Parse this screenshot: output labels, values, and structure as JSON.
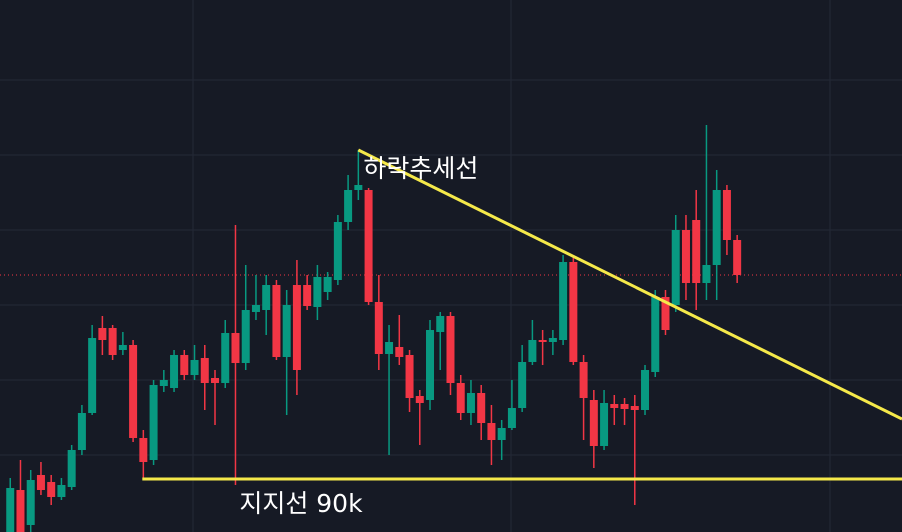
{
  "chart_data": {
    "type": "candlestick",
    "ohlc": [
      [
        84.7,
        90.1,
        84.7,
        89.1
      ],
      [
        88.9,
        91.9,
        84.7,
        84.7
      ],
      [
        85.4,
        90.9,
        84.7,
        89.9
      ],
      [
        90.4,
        91.7,
        88.4,
        88.9
      ],
      [
        89.7,
        90.4,
        87.4,
        88.2
      ],
      [
        88.2,
        90.1,
        87.9,
        89.4
      ],
      [
        89.2,
        93.4,
        88.9,
        92.9
      ],
      [
        92.9,
        97.4,
        92.4,
        96.6
      ],
      [
        96.6,
        105.4,
        96.4,
        104.1
      ],
      [
        105.1,
        106.3,
        102.4,
        103.9
      ],
      [
        105.1,
        105.4,
        101.9,
        102.4
      ],
      [
        102.9,
        104.7,
        102.4,
        103.4
      ],
      [
        103.4,
        103.9,
        93.7,
        94.1
      ],
      [
        94.1,
        94.9,
        90.1,
        91.7
      ],
      [
        91.9,
        99.9,
        91.4,
        99.4
      ],
      [
        99.3,
        100.9,
        98.7,
        99.9
      ],
      [
        99.1,
        102.9,
        98.7,
        102.4
      ],
      [
        102.4,
        102.9,
        99.9,
        100.4
      ],
      [
        100.4,
        103.4,
        99.9,
        101.9
      ],
      [
        102.1,
        103.4,
        96.9,
        99.6
      ],
      [
        100.1,
        100.9,
        95.4,
        99.6
      ],
      [
        99.6,
        105.9,
        99.1,
        104.6
      ],
      [
        104.6,
        115.4,
        89.4,
        101.6
      ],
      [
        101.6,
        111.4,
        100.9,
        106.9
      ],
      [
        106.7,
        110.4,
        105.9,
        107.4
      ],
      [
        106.9,
        110.4,
        104.4,
        109.4
      ],
      [
        109.4,
        109.9,
        101.9,
        102.2
      ],
      [
        102.2,
        108.9,
        96.4,
        107.4
      ],
      [
        109.4,
        111.9,
        98.4,
        100.9
      ],
      [
        109.4,
        110.4,
        106.9,
        107.3
      ],
      [
        107.2,
        111.4,
        105.9,
        110.2
      ],
      [
        108.7,
        110.7,
        107.9,
        110.2
      ],
      [
        109.9,
        116.4,
        109.4,
        115.7
      ],
      [
        115.7,
        120.4,
        114.9,
        118.9
      ],
      [
        118.9,
        122.9,
        117.9,
        119.4
      ],
      [
        118.9,
        119.1,
        107.4,
        107.7
      ],
      [
        107.7,
        110.4,
        100.9,
        102.5
      ],
      [
        102.5,
        105.4,
        92.4,
        103.7
      ],
      [
        103.2,
        106.4,
        101.4,
        102.2
      ],
      [
        102.4,
        102.9,
        96.7,
        98.1
      ],
      [
        98.3,
        98.9,
        93.4,
        97.6
      ],
      [
        97.9,
        105.9,
        96.9,
        104.9
      ],
      [
        104.7,
        106.7,
        100.9,
        106.3
      ],
      [
        106.3,
        106.7,
        98.4,
        99.6
      ],
      [
        99.6,
        100.4,
        95.9,
        96.6
      ],
      [
        96.6,
        99.9,
        95.4,
        98.6
      ],
      [
        98.6,
        99.4,
        93.9,
        95.6
      ],
      [
        95.6,
        97.4,
        91.4,
        93.9
      ],
      [
        93.9,
        95.9,
        91.9,
        95.1
      ],
      [
        95.1,
        99.9,
        94.9,
        97.1
      ],
      [
        97.1,
        103.4,
        96.7,
        101.7
      ],
      [
        101.7,
        105.9,
        101.4,
        103.9
      ],
      [
        103.9,
        104.9,
        101.4,
        103.7
      ],
      [
        103.7,
        104.9,
        102.4,
        104.1
      ],
      [
        103.9,
        112.4,
        103.4,
        111.7
      ],
      [
        111.7,
        112.4,
        101.4,
        101.7
      ],
      [
        101.7,
        102.4,
        93.9,
        98.1
      ],
      [
        97.9,
        98.9,
        91.1,
        93.3
      ],
      [
        93.3,
        98.9,
        92.9,
        97.6
      ],
      [
        97.5,
        98.4,
        95.4,
        97.1
      ],
      [
        97.5,
        98.1,
        95.4,
        97.0
      ],
      [
        97.3,
        98.4,
        87.4,
        96.9
      ],
      [
        96.9,
        101.4,
        96.4,
        100.9
      ],
      [
        100.7,
        108.9,
        100.2,
        108.2
      ],
      [
        108.2,
        108.9,
        104.4,
        104.9
      ],
      [
        107.4,
        116.4,
        106.7,
        114.9
      ],
      [
        114.9,
        116.4,
        107.9,
        109.6
      ],
      [
        115.9,
        118.9,
        106.9,
        109.6
      ],
      [
        109.6,
        125.4,
        107.9,
        111.4
      ],
      [
        111.4,
        120.9,
        107.9,
        118.9
      ],
      [
        118.9,
        119.4,
        112.4,
        113.9
      ],
      [
        113.9,
        114.4,
        109.6,
        110.4
      ]
    ],
    "up_color": "#089981",
    "down_color": "#f23645",
    "xlim": [
      -1,
      87.1
    ],
    "ylim": [
      84.7,
      137.9
    ],
    "lines": [
      {
        "label": "하락추세선",
        "x": [
          34,
          87.1
        ],
        "y": [
          122.9,
          96.0
        ],
        "color": "#f5e94a"
      },
      {
        "label": "지지선 90k",
        "x": [
          12.9,
          87.1
        ],
        "y": [
          90,
          90
        ],
        "color": "#f5e94a"
      }
    ]
  }
}
